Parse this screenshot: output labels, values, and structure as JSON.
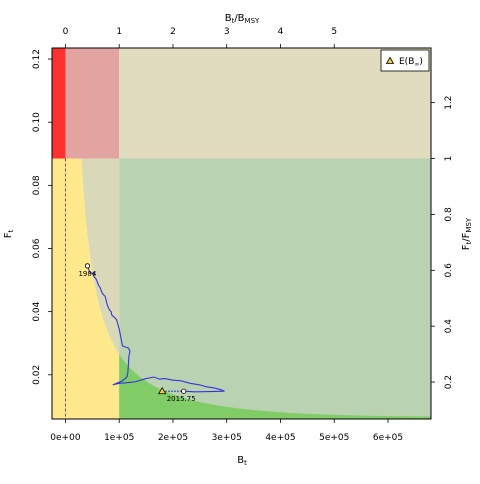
{
  "chart_data": {
    "type": "line",
    "title": "",
    "bottom_axis": {
      "label": "B",
      "label_sub": "t",
      "range": [
        -25000,
        680000
      ],
      "ticks": [
        0,
        100000,
        200000,
        300000,
        400000,
        500000,
        600000
      ],
      "tick_labels": [
        "0e+00",
        "1e+05",
        "2e+05",
        "3e+05",
        "4e+05",
        "5e+05",
        "6e+05"
      ]
    },
    "left_axis": {
      "label": "F",
      "label_sub": "t",
      "range": [
        0.006,
        0.1235
      ],
      "ticks": [
        0.02,
        0.04,
        0.06,
        0.08,
        0.1,
        0.12
      ],
      "tick_labels": [
        "0.02",
        "0.04",
        "0.06",
        "0.08",
        "0.10",
        "0.12"
      ]
    },
    "top_axis": {
      "label": "B",
      "label_sub1": "t",
      "label_mid": "/B",
      "label_sub2": "MSY",
      "ticks": [
        0,
        1,
        2,
        3,
        4,
        5
      ],
      "tick_labels": [
        "0",
        "1",
        "2",
        "3",
        "4",
        "5"
      ]
    },
    "right_axis": {
      "label": "F",
      "label_sub1": "t",
      "label_mid": "/F",
      "label_sub2": "MSY",
      "ticks": [
        0.2,
        0.4,
        0.6,
        0.8,
        1.0,
        1.2
      ],
      "tick_labels": [
        "0.2",
        "0.4",
        "0.6",
        "0.8",
        "1",
        "1.2"
      ]
    },
    "reference": {
      "Bmsy": 100000,
      "Fmsy": 0.0885
    },
    "trajectory": {
      "x": [
        41000,
        45000,
        50000,
        54000,
        52000,
        56000,
        58000,
        60000,
        62000,
        64000,
        66000,
        68000,
        70000,
        74000,
        78000,
        82000,
        85000,
        86000,
        95000,
        100000,
        106000,
        108000,
        111000,
        117000,
        120000,
        118000,
        117000,
        116000,
        114000,
        105000,
        95000,
        88000,
        100000,
        115000,
        130000,
        150000,
        165000,
        175000,
        185000,
        200000,
        215000,
        232000,
        250000,
        262000,
        278000,
        290000,
        296000,
        270000,
        240000,
        220000
      ],
      "y": [
        0.0545,
        0.0526,
        0.0521,
        0.0525,
        0.0513,
        0.0506,
        0.05,
        0.049,
        0.0482,
        0.0478,
        0.047,
        0.046,
        0.0455,
        0.0448,
        0.042,
        0.0405,
        0.04,
        0.039,
        0.0375,
        0.0345,
        0.0293,
        0.029,
        0.0288,
        0.0285,
        0.0275,
        0.0258,
        0.023,
        0.0205,
        0.0192,
        0.018,
        0.0173,
        0.0168,
        0.0173,
        0.0175,
        0.0178,
        0.0188,
        0.0193,
        0.0186,
        0.0188,
        0.0183,
        0.0181,
        0.0173,
        0.0168,
        0.0162,
        0.0158,
        0.0152,
        0.0148,
        0.0147,
        0.0146,
        0.0148
      ],
      "line_color": "#3535d6"
    },
    "start_point": {
      "x": 41000,
      "y": 0.0545,
      "label": "1984"
    },
    "end_point": {
      "x": 220000,
      "y": 0.0148,
      "label": "2015.75"
    },
    "expected_point": {
      "x": 180000,
      "y": 0.0148
    },
    "legend": {
      "position": "top-right",
      "label": "E(B",
      "label_sub": "∞",
      "label_close": ")"
    },
    "colors": {
      "red": "#ff3030",
      "pink": "#e3a3a1",
      "tan": "#e1dbbf",
      "gray_green": "#b9d2b2",
      "yellow": "#ffe98c",
      "green": "#80cc66",
      "gray": "#d9d9b9",
      "expected_marker": "#e8d232"
    }
  }
}
